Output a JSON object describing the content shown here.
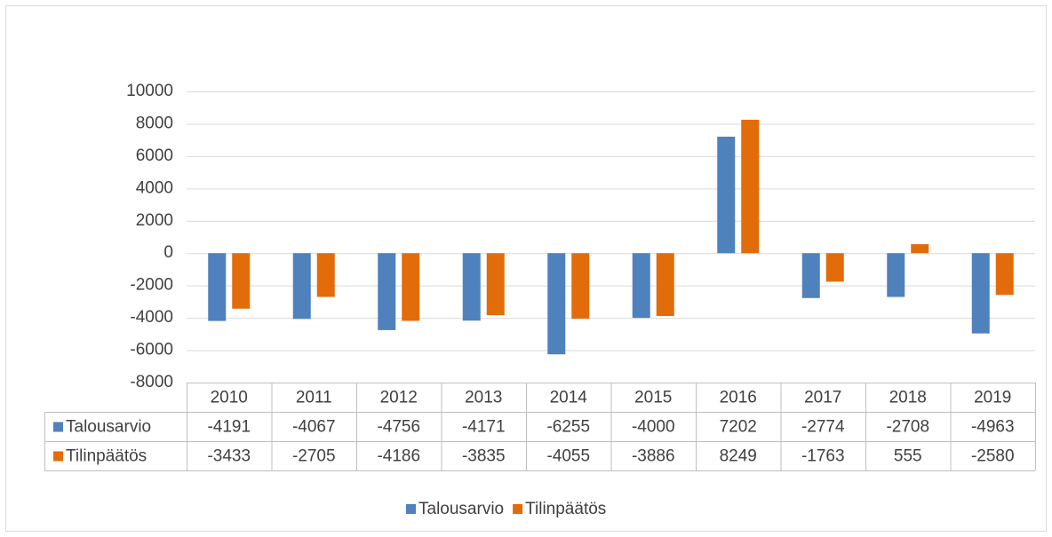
{
  "chart_data": {
    "type": "bar",
    "categories": [
      "2010",
      "2011",
      "2012",
      "2013",
      "2014",
      "2015",
      "2016",
      "2017",
      "2018",
      "2019"
    ],
    "series": [
      {
        "name": "Talousarvio",
        "color": "#4f81bd",
        "values": [
          -4191,
          -4067,
          -4756,
          -4171,
          -6255,
          -4000,
          7202,
          -2774,
          -2708,
          -4963
        ]
      },
      {
        "name": "Tilinpäätös",
        "color": "#e36c0a",
        "values": [
          -3433,
          -2705,
          -4186,
          -3835,
          -4055,
          -3886,
          8249,
          -1763,
          555,
          -2580
        ]
      }
    ],
    "ylim": [
      -8000,
      10000
    ],
    "yticks": [
      -8000,
      -6000,
      -4000,
      -2000,
      0,
      2000,
      4000,
      6000,
      8000,
      10000
    ],
    "grid": true,
    "data_table": true,
    "legend": "bottom"
  }
}
